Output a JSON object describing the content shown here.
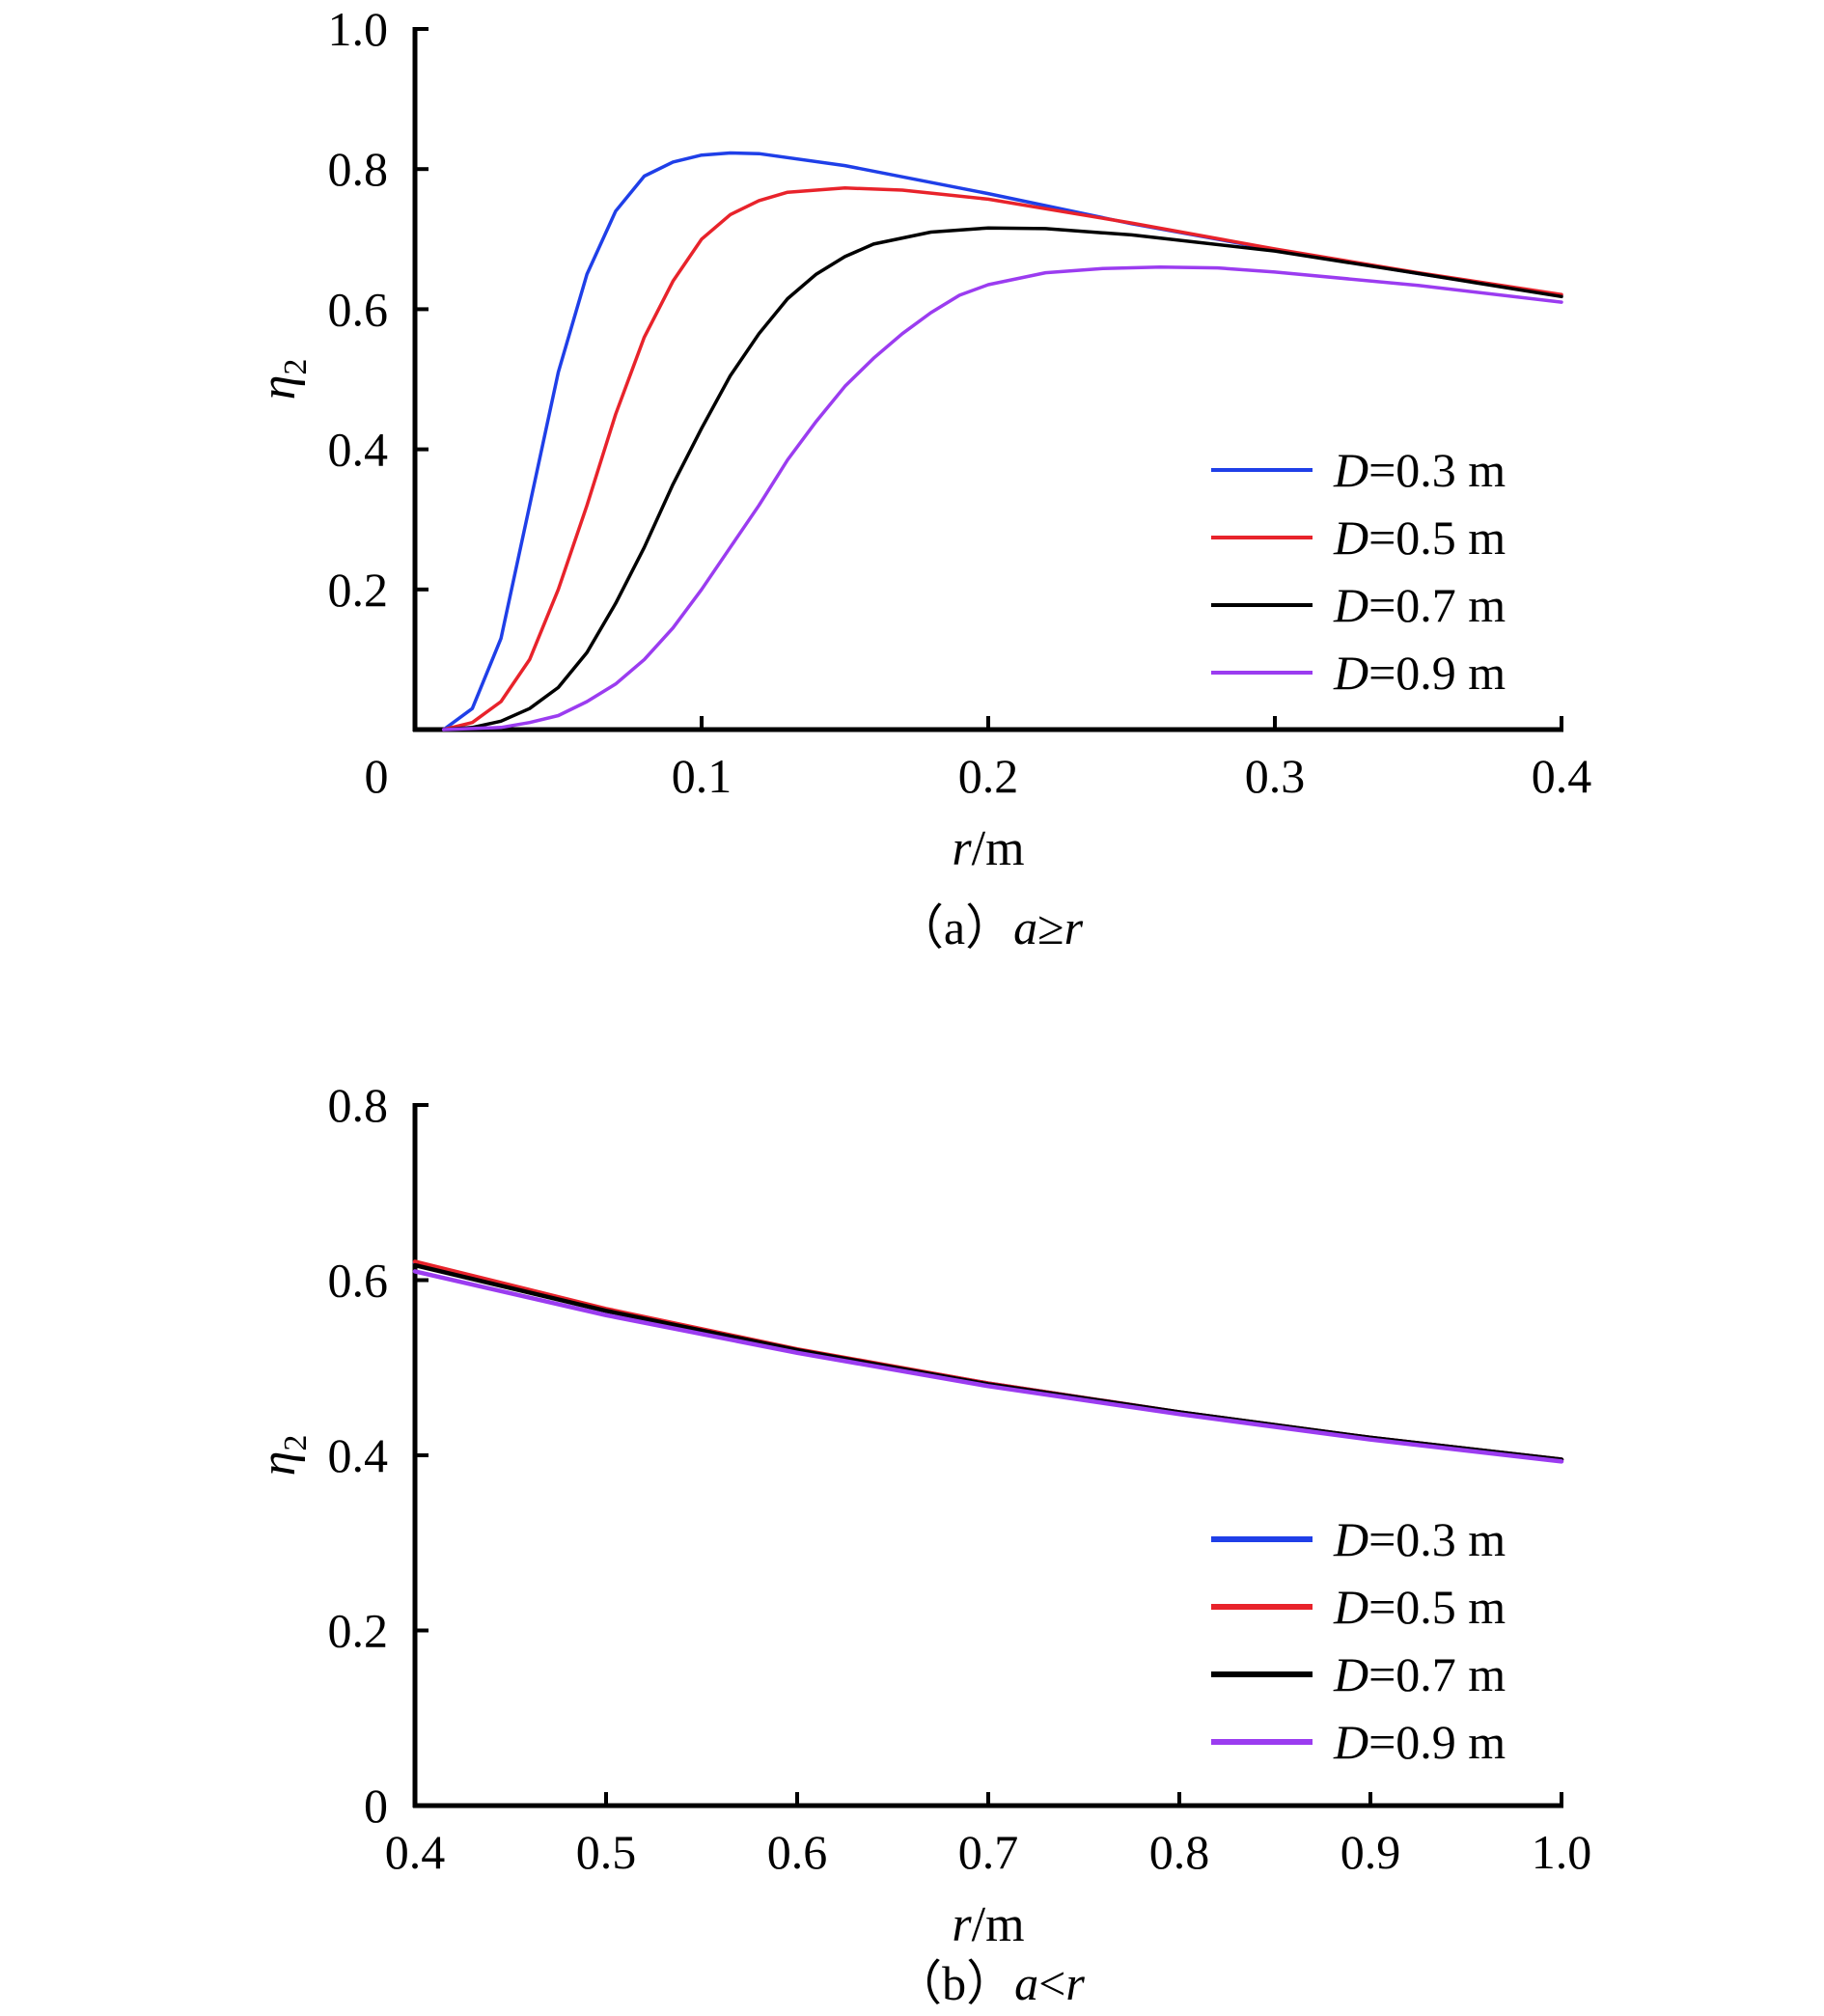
{
  "chart_data": [
    {
      "type": "line",
      "caption": "（a）a≥r",
      "xlabel": "r/m",
      "ylabel": "η2",
      "xlim": [
        0,
        0.4
      ],
      "ylim": [
        0,
        1.0
      ],
      "xticks": [
        0,
        0.1,
        0.2,
        0.3,
        0.4
      ],
      "xtick_labels": [
        "0",
        "0.1",
        "0.2",
        "0.3",
        "0.4"
      ],
      "yticks": [
        0.2,
        0.4,
        0.6,
        0.8,
        1.0
      ],
      "ytick_labels": [
        "0.2",
        "0.4",
        "0.6",
        "0.8",
        "1.0"
      ],
      "grid": false,
      "legend_position": "bottom-right",
      "series": [
        {
          "name": "D=0.3 m",
          "color": "#1f3fe8",
          "x": [
            0.01,
            0.02,
            0.03,
            0.04,
            0.05,
            0.06,
            0.07,
            0.08,
            0.09,
            0.1,
            0.11,
            0.12,
            0.15,
            0.2,
            0.25,
            0.3,
            0.35,
            0.4
          ],
          "y": [
            0.0,
            0.03,
            0.13,
            0.32,
            0.51,
            0.65,
            0.74,
            0.79,
            0.81,
            0.82,
            0.823,
            0.822,
            0.805,
            0.765,
            0.722,
            0.685,
            0.651,
            0.62
          ]
        },
        {
          "name": "D=0.5 m",
          "color": "#e8232b",
          "x": [
            0.01,
            0.02,
            0.03,
            0.04,
            0.05,
            0.06,
            0.07,
            0.08,
            0.09,
            0.1,
            0.11,
            0.12,
            0.13,
            0.15,
            0.17,
            0.2,
            0.25,
            0.3,
            0.35,
            0.4
          ],
          "y": [
            0.0,
            0.01,
            0.04,
            0.1,
            0.2,
            0.32,
            0.45,
            0.56,
            0.64,
            0.7,
            0.735,
            0.755,
            0.767,
            0.773,
            0.77,
            0.757,
            0.723,
            0.686,
            0.652,
            0.621
          ]
        },
        {
          "name": "D=0.7 m",
          "color": "#000000",
          "x": [
            0.01,
            0.02,
            0.03,
            0.04,
            0.05,
            0.06,
            0.07,
            0.08,
            0.09,
            0.1,
            0.11,
            0.12,
            0.13,
            0.14,
            0.15,
            0.16,
            0.18,
            0.2,
            0.22,
            0.25,
            0.3,
            0.35,
            0.4
          ],
          "y": [
            0.0,
            0.003,
            0.012,
            0.03,
            0.06,
            0.11,
            0.18,
            0.26,
            0.35,
            0.43,
            0.505,
            0.565,
            0.615,
            0.65,
            0.675,
            0.693,
            0.71,
            0.716,
            0.715,
            0.706,
            0.683,
            0.651,
            0.618
          ]
        },
        {
          "name": "D=0.9 m",
          "color": "#9b3cf0",
          "x": [
            0.01,
            0.03,
            0.04,
            0.05,
            0.06,
            0.07,
            0.08,
            0.09,
            0.1,
            0.11,
            0.12,
            0.13,
            0.14,
            0.15,
            0.16,
            0.17,
            0.18,
            0.19,
            0.2,
            0.22,
            0.24,
            0.26,
            0.28,
            0.3,
            0.35,
            0.4
          ],
          "y": [
            0.0,
            0.003,
            0.01,
            0.02,
            0.04,
            0.065,
            0.1,
            0.145,
            0.2,
            0.26,
            0.32,
            0.385,
            0.44,
            0.49,
            0.53,
            0.565,
            0.595,
            0.62,
            0.635,
            0.652,
            0.658,
            0.66,
            0.659,
            0.653,
            0.634,
            0.61
          ]
        }
      ]
    },
    {
      "type": "line",
      "caption": "（b）a<r",
      "xlabel": "r/m",
      "ylabel": "η2",
      "xlim": [
        0.4,
        1.0
      ],
      "ylim": [
        0,
        0.8
      ],
      "xticks": [
        0.4,
        0.5,
        0.6,
        0.7,
        0.8,
        0.9,
        1.0
      ],
      "xtick_labels": [
        "0.4",
        "0.5",
        "0.6",
        "0.7",
        "0.8",
        "0.9",
        "1.0"
      ],
      "yticks": [
        0,
        0.2,
        0.4,
        0.6,
        0.8
      ],
      "ytick_labels": [
        "0",
        "0.2",
        "0.4",
        "0.6",
        "0.8"
      ],
      "grid": false,
      "legend_position": "bottom-right",
      "series": [
        {
          "name": "D=0.3 m",
          "color": "#1f3fe8",
          "x": [
            0.4,
            0.5,
            0.6,
            0.7,
            0.8,
            0.9,
            1.0
          ],
          "y": [
            0.62,
            0.566,
            0.52,
            0.482,
            0.449,
            0.42,
            0.395
          ]
        },
        {
          "name": "D=0.5 m",
          "color": "#e8232b",
          "x": [
            0.4,
            0.5,
            0.6,
            0.7,
            0.8,
            0.9,
            1.0
          ],
          "y": [
            0.621,
            0.567,
            0.521,
            0.482,
            0.449,
            0.42,
            0.395
          ]
        },
        {
          "name": "D=0.7 m",
          "color": "#000000",
          "x": [
            0.4,
            0.5,
            0.6,
            0.7,
            0.8,
            0.9,
            1.0
          ],
          "y": [
            0.617,
            0.565,
            0.52,
            0.481,
            0.449,
            0.42,
            0.395
          ]
        },
        {
          "name": "D=0.9 m",
          "color": "#9b3cf0",
          "x": [
            0.4,
            0.5,
            0.6,
            0.7,
            0.8,
            0.9,
            1.0
          ],
          "y": [
            0.61,
            0.56,
            0.517,
            0.479,
            0.447,
            0.418,
            0.393
          ]
        }
      ]
    }
  ]
}
